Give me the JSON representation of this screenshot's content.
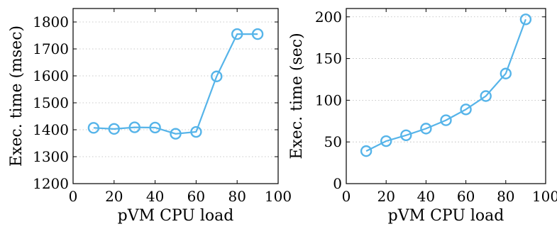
{
  "chart_data": [
    {
      "type": "line",
      "xlabel": "pVM CPU load",
      "ylabel": "Exec. time (msec)",
      "xlim": [
        0,
        100
      ],
      "ylim": [
        1200,
        1850
      ],
      "xticks": [
        0,
        20,
        40,
        60,
        80,
        100
      ],
      "yticks": [
        1200,
        1300,
        1400,
        1500,
        1600,
        1700,
        1800
      ],
      "grid": "horizontal-dotted",
      "color": "#56B4E9",
      "series": [
        {
          "x": [
            10,
            20,
            30,
            40,
            50,
            60,
            70,
            80,
            90
          ],
          "y": [
            1407,
            1403,
            1409,
            1408,
            1385,
            1392,
            1598,
            1755,
            1755
          ]
        }
      ]
    },
    {
      "type": "line",
      "xlabel": "pVM CPU load",
      "ylabel": "Exec. time (sec)",
      "xlim": [
        0,
        100
      ],
      "ylim": [
        0,
        210
      ],
      "xticks": [
        0,
        20,
        40,
        60,
        80,
        100
      ],
      "yticks": [
        0,
        50,
        100,
        150,
        200
      ],
      "grid": "horizontal-dotted",
      "color": "#56B4E9",
      "series": [
        {
          "x": [
            10,
            20,
            30,
            40,
            50,
            60,
            70,
            80,
            90
          ],
          "y": [
            39,
            51,
            58,
            66,
            76,
            89,
            105,
            132,
            197
          ]
        }
      ]
    }
  ]
}
